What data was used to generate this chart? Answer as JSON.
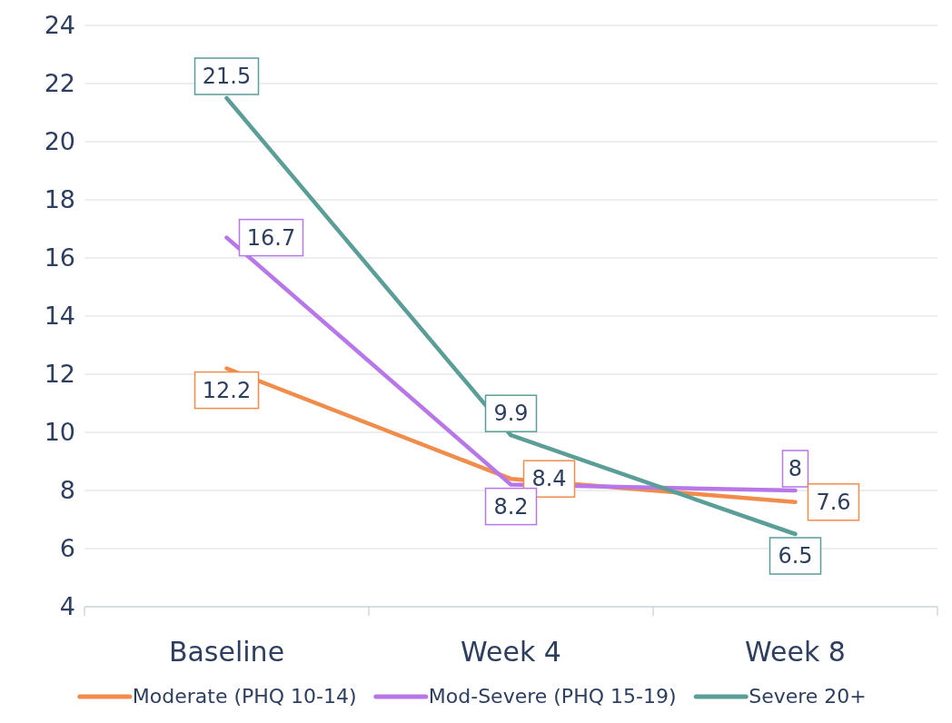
{
  "chart_data": {
    "type": "line",
    "categories": [
      "Baseline",
      "Week 4",
      "Week 8"
    ],
    "series": [
      {
        "name": "Moderate (PHQ 10-14)",
        "color": "#f28c4a",
        "values": [
          12.2,
          8.4,
          7.6
        ]
      },
      {
        "name": "Mod-Severe (PHQ 15-19)",
        "color": "#b877e8",
        "values": [
          16.7,
          8.2,
          8
        ]
      },
      {
        "name": "Severe 20+",
        "color": "#5a9e97",
        "values": [
          21.5,
          9.9,
          6.5
        ]
      }
    ],
    "ylim": [
      4,
      24
    ],
    "yticks": [
      4,
      6,
      8,
      10,
      12,
      14,
      16,
      18,
      20,
      22,
      24
    ],
    "grid": "y",
    "legend": "bottom",
    "data_labels": true,
    "marker": "none",
    "line_style": "solid"
  }
}
